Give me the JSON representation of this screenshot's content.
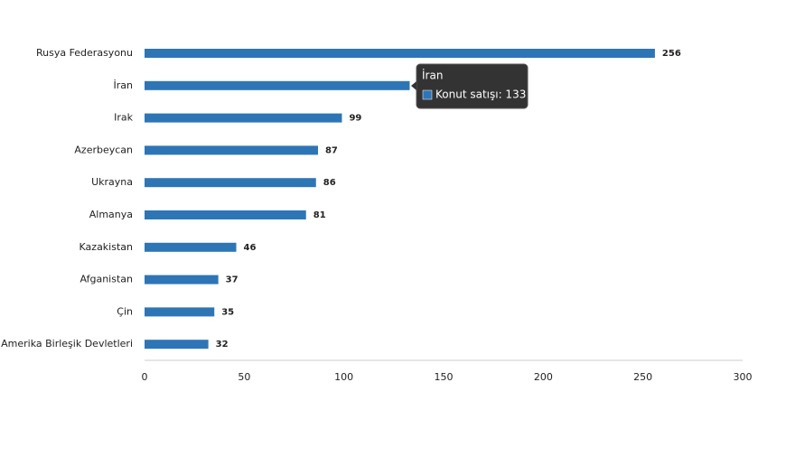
{
  "chart_data": {
    "type": "bar",
    "orientation": "horizontal",
    "categories": [
      "Rusya Federasyonu",
      "İran",
      "Irak",
      "Azerbeycan",
      "Ukrayna",
      "Almanya",
      "Kazakistan",
      "Afganistan",
      "Çin",
      "Amerika Birleşik Devletleri"
    ],
    "series": [
      {
        "name": "Konut satışı",
        "color": "#2e75b6",
        "values": [
          256,
          133,
          99,
          87,
          86,
          81,
          46,
          37,
          35,
          32
        ]
      }
    ],
    "xlim": [
      0,
      300
    ],
    "xticks": [
      0,
      50,
      100,
      150,
      200,
      250,
      300
    ],
    "grid": false,
    "tooltip": {
      "title": "İran",
      "text": "Konut satışı: 133"
    }
  }
}
